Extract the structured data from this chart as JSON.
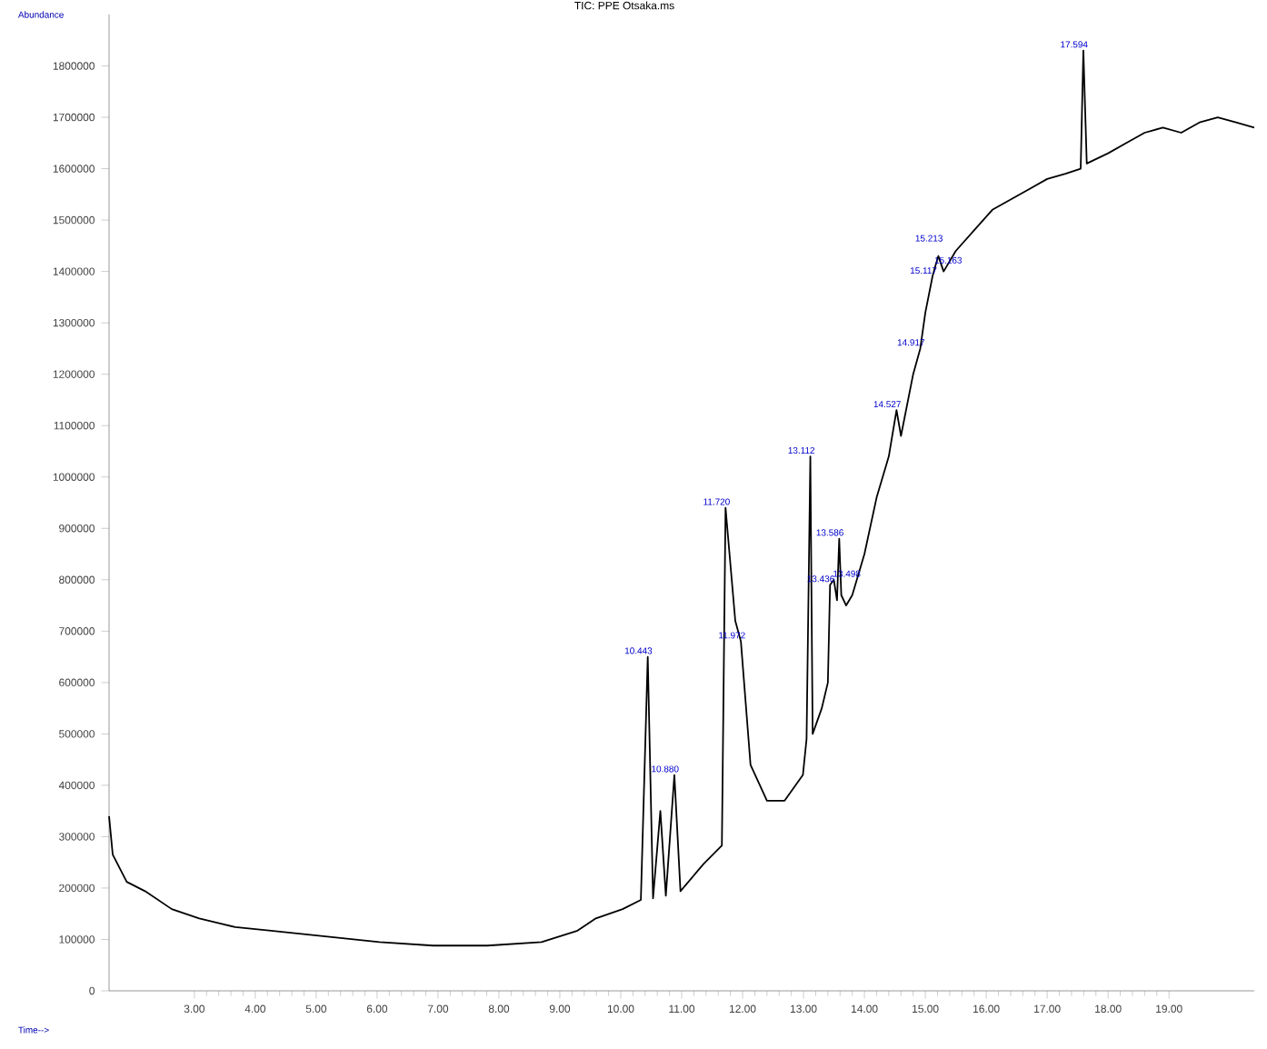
{
  "chart_data": {
    "type": "line",
    "title": "TIC: PPE Otsaka.ms",
    "xlabel": "Time-->",
    "ylabel": "Abundance",
    "xlim": [
      1.6,
      20.4
    ],
    "ylim": [
      0,
      1900000
    ],
    "xticks": [
      {
        "value": 3,
        "label": "3.00"
      },
      {
        "value": 4,
        "label": "4.00"
      },
      {
        "value": 5,
        "label": "5.00"
      },
      {
        "value": 6,
        "label": "6.00"
      },
      {
        "value": 7,
        "label": "7.00"
      },
      {
        "value": 8,
        "label": "8.00"
      },
      {
        "value": 9,
        "label": "9.00"
      },
      {
        "value": 10,
        "label": "10.00"
      },
      {
        "value": 11,
        "label": "11.00"
      },
      {
        "value": 12,
        "label": "12.00"
      },
      {
        "value": 13,
        "label": "13.00"
      },
      {
        "value": 14,
        "label": "14.00"
      },
      {
        "value": 15,
        "label": "15.00"
      },
      {
        "value": 16,
        "label": "16.00"
      },
      {
        "value": 17,
        "label": "17.00"
      },
      {
        "value": 18,
        "label": "18.00"
      },
      {
        "value": 19,
        "label": "19.00"
      }
    ],
    "yticks": [
      0,
      100000,
      200000,
      300000,
      400000,
      500000,
      600000,
      700000,
      800000,
      900000,
      1000000,
      1100000,
      1200000,
      1300000,
      1400000,
      1500000,
      1600000,
      1700000,
      1800000
    ],
    "series": [
      {
        "color": "#000000",
        "x": [
          1.6,
          1.66,
          1.89,
          2.19,
          2.63,
          3.08,
          3.67,
          4.26,
          5.15,
          6.04,
          6.92,
          7.81,
          8.7,
          9.29,
          9.59,
          10.03,
          10.33,
          10.443,
          10.53,
          10.65,
          10.74,
          10.88,
          10.98,
          11.36,
          11.66,
          11.72,
          11.88,
          11.972,
          12.13,
          12.4,
          12.69,
          12.99,
          13.05,
          13.112,
          13.15,
          13.3,
          13.4,
          13.436,
          13.498,
          13.55,
          13.586,
          13.62,
          13.7,
          13.8,
          13.9,
          14.0,
          14.2,
          14.4,
          14.527,
          14.6,
          14.8,
          14.917,
          15.0,
          15.117,
          15.163,
          15.213,
          15.3,
          15.5,
          15.8,
          16.1,
          16.4,
          16.7,
          17.0,
          17.3,
          17.55,
          17.594,
          17.65,
          18.0,
          18.3,
          18.6,
          18.9,
          19.2,
          19.5,
          19.8,
          20.1,
          20.4
        ],
        "values": [
          340000,
          265000,
          212000,
          194000,
          159000,
          141000,
          124000,
          117000,
          106000,
          95000,
          88000,
          88000,
          95000,
          117000,
          141000,
          159000,
          177000,
          650000,
          180000,
          350000,
          185000,
          420000,
          194000,
          247000,
          283000,
          940000,
          720000,
          680000,
          440000,
          370000,
          370000,
          420000,
          490000,
          1040000,
          500000,
          550000,
          600000,
          790000,
          800000,
          760000,
          880000,
          770000,
          750000,
          770000,
          810000,
          850000,
          960000,
          1040000,
          1130000,
          1080000,
          1200000,
          1250000,
          1320000,
          1390000,
          1410000,
          1430000,
          1400000,
          1440000,
          1480000,
          1520000,
          1540000,
          1560000,
          1580000,
          1590000,
          1600000,
          1830000,
          1610000,
          1630000,
          1650000,
          1670000,
          1680000,
          1670000,
          1690000,
          1700000,
          1690000,
          1680000
        ]
      }
    ],
    "annotations": [
      {
        "text": "10.443",
        "x": 10.443,
        "y": 650000
      },
      {
        "text": "10.880",
        "x": 10.88,
        "y": 420000
      },
      {
        "text": "11.720",
        "x": 11.72,
        "y": 940000
      },
      {
        "text": "11.972",
        "x": 11.972,
        "y": 680000
      },
      {
        "text": "13.112",
        "x": 13.112,
        "y": 1040000
      },
      {
        "text": "13.586",
        "x": 13.586,
        "y": 880000
      },
      {
        "text": "13.436",
        "x": 13.436,
        "y": 790000
      },
      {
        "text": "13.498",
        "x": 13.498,
        "y": 800000
      },
      {
        "text": "14.527",
        "x": 14.527,
        "y": 1130000
      },
      {
        "text": "14.917",
        "x": 14.917,
        "y": 1250000
      },
      {
        "text": "15.213",
        "x": 15.213,
        "y": 1430000
      },
      {
        "text": "15.163",
        "x": 15.163,
        "y": 1410000
      },
      {
        "text": "15.117",
        "x": 15.117,
        "y": 1390000
      },
      {
        "text": "17.594",
        "x": 17.594,
        "y": 1830000
      }
    ]
  }
}
